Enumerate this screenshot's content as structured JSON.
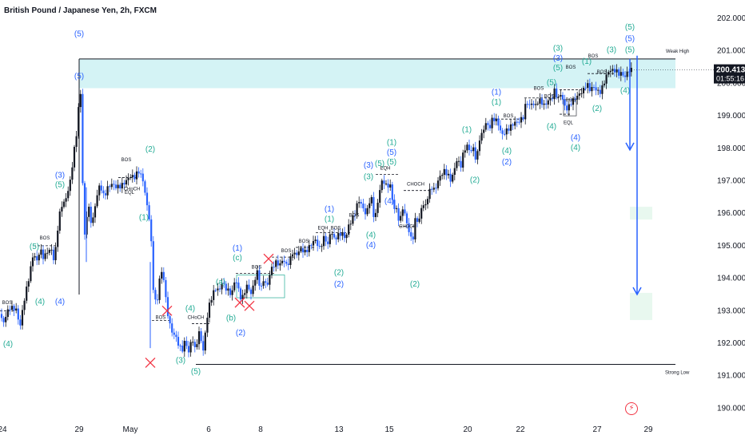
{
  "title": "British Pound / Japanese Yen, 2h, FXCM",
  "colors": {
    "background": "#ffffff",
    "candle_up": "#131722",
    "candle_down": "#2962ff",
    "zone_fill": "#d4f3f5",
    "wave_blue": "#2962ff",
    "wave_teal": "#22ab94",
    "cross": "#f23645",
    "price_tag": "#131722",
    "arrow": "#2962ff"
  },
  "chart_data": {
    "type": "candlestick",
    "symbol": "GBPJPY",
    "timeframe": "2h",
    "ylim": [
      189.7,
      202.5
    ],
    "y_ticks": [
      "202.000",
      "201.000",
      "200.000",
      "199.000",
      "198.000",
      "197.000",
      "196.000",
      "195.000",
      "194.000",
      "193.000",
      "192.000",
      "191.000",
      "190.000"
    ],
    "x_ticks": [
      "24",
      "29",
      "May",
      "6",
      "8",
      "13",
      "15",
      "20",
      "22",
      "27",
      "29"
    ],
    "last_price": "200.413",
    "countdown": "01:55:16",
    "weak_high": {
      "label": "Weak High",
      "value": 200.75
    },
    "strong_low": {
      "label": "Strong Low",
      "value": 191.35
    },
    "supply_zone": [
      199.85,
      200.75
    ],
    "projection": {
      "from": 200.85,
      "to_1": 197.95,
      "to_2": 193.5
    },
    "price_path": [
      [
        0,
        192.9
      ],
      [
        4,
        192.6
      ],
      [
        8,
        192.9
      ],
      [
        12,
        193.1
      ],
      [
        20,
        193.05
      ],
      [
        25,
        192.5
      ],
      [
        30,
        193.3
      ],
      [
        36,
        194.0
      ],
      [
        42,
        194.8
      ],
      [
        46,
        194.5
      ],
      [
        50,
        194.9
      ],
      [
        55,
        194.6
      ],
      [
        58,
        194.8
      ],
      [
        64,
        194.9
      ],
      [
        68,
        194.5
      ],
      [
        72,
        195.5
      ],
      [
        76,
        196.2
      ],
      [
        82,
        196.4
      ],
      [
        88,
        197.0
      ],
      [
        92,
        197.8
      ],
      [
        96,
        198.5
      ],
      [
        99,
        199.5
      ],
      [
        101,
        199.7
      ],
      [
        103,
        197.2
      ],
      [
        106,
        195.3
      ],
      [
        110,
        196.3
      ],
      [
        115,
        195.6
      ],
      [
        120,
        196.4
      ],
      [
        125,
        196.9
      ],
      [
        130,
        196.5
      ],
      [
        135,
        196.8
      ],
      [
        140,
        196.9
      ],
      [
        146,
        196.8
      ],
      [
        152,
        196.85
      ],
      [
        158,
        197.0
      ],
      [
        163,
        197.15
      ],
      [
        168,
        197.1
      ],
      [
        173,
        197.3
      ],
      [
        176,
        197.2
      ],
      [
        180,
        196.9
      ],
      [
        184,
        196.2
      ],
      [
        188,
        195.7
      ],
      [
        192,
        193.6
      ],
      [
        196,
        193.1
      ],
      [
        200,
        194.1
      ],
      [
        204,
        194.2
      ],
      [
        208,
        193.2
      ],
      [
        212,
        192.6
      ],
      [
        216,
        192.3
      ],
      [
        220,
        192.2
      ],
      [
        224,
        191.9
      ],
      [
        228,
        191.8
      ],
      [
        232,
        192.1
      ],
      [
        236,
        191.7
      ],
      [
        240,
        192.2
      ],
      [
        244,
        191.8
      ],
      [
        250,
        192.4
      ],
      [
        254,
        191.7
      ],
      [
        258,
        192.6
      ],
      [
        262,
        193.2
      ],
      [
        266,
        193.5
      ],
      [
        270,
        193.7
      ],
      [
        274,
        193.6
      ],
      [
        278,
        193.9
      ],
      [
        282,
        193.7
      ],
      [
        286,
        193.6
      ],
      [
        290,
        193.5
      ],
      [
        294,
        194.0
      ],
      [
        298,
        193.7
      ],
      [
        302,
        193.3
      ],
      [
        306,
        193.6
      ],
      [
        310,
        193.8
      ],
      [
        314,
        193.5
      ],
      [
        318,
        193.9
      ],
      [
        322,
        194.2
      ],
      [
        326,
        193.6
      ],
      [
        330,
        194.0
      ],
      [
        334,
        193.7
      ],
      [
        338,
        194.2
      ],
      [
        342,
        194.4
      ],
      [
        346,
        194.5
      ],
      [
        350,
        194.4
      ],
      [
        354,
        194.6
      ],
      [
        358,
        194.4
      ],
      [
        362,
        194.5
      ],
      [
        366,
        194.8
      ],
      [
        370,
        194.7
      ],
      [
        376,
        194.9
      ],
      [
        382,
        194.8
      ],
      [
        388,
        195.0
      ],
      [
        394,
        195.2
      ],
      [
        400,
        194.9
      ],
      [
        406,
        195.3
      ],
      [
        410,
        195.0
      ],
      [
        414,
        195.5
      ],
      [
        418,
        195.2
      ],
      [
        422,
        195.3
      ],
      [
        428,
        195.4
      ],
      [
        432,
        195.2
      ],
      [
        436,
        195.6
      ],
      [
        440,
        195.8
      ],
      [
        444,
        196.0
      ],
      [
        448,
        196.4
      ],
      [
        452,
        196.3
      ],
      [
        456,
        196.0
      ],
      [
        460,
        196.1
      ],
      [
        464,
        196.6
      ],
      [
        468,
        195.8
      ],
      [
        472,
        196.2
      ],
      [
        476,
        196.9
      ],
      [
        480,
        197.0
      ],
      [
        484,
        196.8
      ],
      [
        488,
        196.9
      ],
      [
        492,
        196.2
      ],
      [
        496,
        196.1
      ],
      [
        500,
        195.7
      ],
      [
        504,
        196.2
      ],
      [
        508,
        195.8
      ],
      [
        512,
        195.4
      ],
      [
        516,
        195.1
      ],
      [
        520,
        195.9
      ],
      [
        524,
        195.7
      ],
      [
        528,
        196.3
      ],
      [
        532,
        196.2
      ],
      [
        536,
        196.6
      ],
      [
        540,
        196.8
      ],
      [
        544,
        196.7
      ],
      [
        548,
        197.0
      ],
      [
        552,
        197.2
      ],
      [
        556,
        197.3
      ],
      [
        560,
        197.2
      ],
      [
        564,
        197.0
      ],
      [
        568,
        197.3
      ],
      [
        572,
        197.7
      ],
      [
        576,
        197.4
      ],
      [
        580,
        197.9
      ],
      [
        584,
        198.1
      ],
      [
        588,
        197.9
      ],
      [
        592,
        198.0
      ],
      [
        596,
        197.6
      ],
      [
        600,
        198.3
      ],
      [
        604,
        198.5
      ],
      [
        608,
        198.8
      ],
      [
        612,
        198.6
      ],
      [
        616,
        198.9
      ],
      [
        620,
        198.9
      ],
      [
        624,
        198.7
      ],
      [
        628,
        198.4
      ],
      [
        632,
        198.5
      ],
      [
        636,
        198.6
      ],
      [
        640,
        198.7
      ],
      [
        644,
        198.8
      ],
      [
        648,
        198.8
      ],
      [
        652,
        198.9
      ],
      [
        656,
        199.0
      ],
      [
        658,
        199.5
      ],
      [
        662,
        199.3
      ],
      [
        666,
        199.4
      ],
      [
        670,
        199.3
      ],
      [
        674,
        199.5
      ],
      [
        678,
        199.4
      ],
      [
        682,
        199.3
      ],
      [
        686,
        199.5
      ],
      [
        690,
        199.5
      ],
      [
        694,
        199.8
      ],
      [
        698,
        199.5
      ],
      [
        702,
        199.7
      ],
      [
        706,
        199.3
      ],
      [
        710,
        199.2
      ],
      [
        714,
        199.4
      ],
      [
        718,
        199.5
      ],
      [
        722,
        199.6
      ],
      [
        726,
        199.7
      ],
      [
        730,
        199.8
      ],
      [
        734,
        200.0
      ],
      [
        738,
        199.8
      ],
      [
        742,
        199.9
      ],
      [
        746,
        199.8
      ],
      [
        750,
        199.7
      ],
      [
        754,
        199.9
      ],
      [
        758,
        200.2
      ],
      [
        762,
        200.4
      ],
      [
        766,
        200.4
      ],
      [
        770,
        200.4
      ],
      [
        774,
        200.3
      ],
      [
        778,
        200.3
      ],
      [
        782,
        200.2
      ],
      [
        786,
        200.4
      ],
      [
        790,
        200.41
      ]
    ],
    "annotations": {
      "wave_labels": [
        {
          "t": "(5)",
          "x": 99,
          "y": 200.15,
          "c": "blue"
        },
        {
          "t": "(5)",
          "x": 99,
          "y": 201.45,
          "c": "blue"
        },
        {
          "t": "(3)",
          "x": 75,
          "y": 197.1,
          "c": "blue"
        },
        {
          "t": "(5)",
          "x": 75,
          "y": 196.8,
          "c": "teal"
        },
        {
          "t": "(5)",
          "x": 43,
          "y": 194.9,
          "c": "teal"
        },
        {
          "t": "(4)",
          "x": 50,
          "y": 193.2,
          "c": "teal"
        },
        {
          "t": "(4)",
          "x": 75,
          "y": 193.2,
          "c": "blue"
        },
        {
          "t": "(4)",
          "x": 10,
          "y": 191.9,
          "c": "teal"
        },
        {
          "t": "(2)",
          "x": 188,
          "y": 197.9,
          "c": "teal"
        },
        {
          "t": "(1)",
          "x": 180,
          "y": 195.8,
          "c": "teal"
        },
        {
          "t": "(4)",
          "x": 238,
          "y": 193.0,
          "c": "teal"
        },
        {
          "t": "(3)",
          "x": 226,
          "y": 191.4,
          "c": "teal"
        },
        {
          "t": "(5)",
          "x": 245,
          "y": 191.05,
          "c": "teal"
        },
        {
          "t": "(1)",
          "x": 297,
          "y": 194.85,
          "c": "blue"
        },
        {
          "t": "(c)",
          "x": 297,
          "y": 194.55,
          "c": "teal"
        },
        {
          "t": "(a)",
          "x": 276,
          "y": 193.8,
          "c": "teal"
        },
        {
          "t": "(b)",
          "x": 289,
          "y": 192.7,
          "c": "teal"
        },
        {
          "t": "(2)",
          "x": 301,
          "y": 192.25,
          "c": "blue"
        },
        {
          "t": "(1)",
          "x": 412,
          "y": 196.05,
          "c": "blue"
        },
        {
          "t": "(1)",
          "x": 412,
          "y": 195.75,
          "c": "teal"
        },
        {
          "t": "(2)",
          "x": 424,
          "y": 194.1,
          "c": "teal"
        },
        {
          "t": "(2)",
          "x": 424,
          "y": 193.75,
          "c": "blue"
        },
        {
          "t": "(4)",
          "x": 464,
          "y": 195.25,
          "c": "teal"
        },
        {
          "t": "(4)",
          "x": 464,
          "y": 194.95,
          "c": "blue"
        },
        {
          "t": "(3)",
          "x": 461,
          "y": 197.4,
          "c": "blue"
        },
        {
          "t": "(3)",
          "x": 461,
          "y": 197.05,
          "c": "teal"
        },
        {
          "t": "(5)",
          "x": 475,
          "y": 197.45,
          "c": "teal"
        },
        {
          "t": "(1)",
          "x": 490,
          "y": 198.1,
          "c": "teal"
        },
        {
          "t": "(5)",
          "x": 490,
          "y": 197.8,
          "c": "blue"
        },
        {
          "t": "(5)",
          "x": 490,
          "y": 197.5,
          "c": "teal"
        },
        {
          "t": "(4)",
          "x": 487,
          "y": 196.3,
          "c": "blue"
        },
        {
          "t": "(2)",
          "x": 519,
          "y": 193.75,
          "c": "teal"
        },
        {
          "t": "(2)",
          "x": 594,
          "y": 196.95,
          "c": "teal"
        },
        {
          "t": "(1)",
          "x": 584,
          "y": 198.5,
          "c": "teal"
        },
        {
          "t": "(1)",
          "x": 621,
          "y": 199.65,
          "c": "blue"
        },
        {
          "t": "(1)",
          "x": 621,
          "y": 199.35,
          "c": "teal"
        },
        {
          "t": "(4)",
          "x": 634,
          "y": 197.85,
          "c": "teal"
        },
        {
          "t": "(2)",
          "x": 634,
          "y": 197.5,
          "c": "blue"
        },
        {
          "t": "(4)",
          "x": 690,
          "y": 198.6,
          "c": "teal"
        },
        {
          "t": "(5)",
          "x": 690,
          "y": 199.95,
          "c": "teal"
        },
        {
          "t": "(3)",
          "x": 698,
          "y": 201.0,
          "c": "teal"
        },
        {
          "t": "(3)",
          "x": 698,
          "y": 200.7,
          "c": "blue"
        },
        {
          "t": "(5)",
          "x": 698,
          "y": 200.4,
          "c": "teal"
        },
        {
          "t": "(1)",
          "x": 734,
          "y": 200.6,
          "c": "teal"
        },
        {
          "t": "(4)",
          "x": 720,
          "y": 198.25,
          "c": "blue"
        },
        {
          "t": "(4)",
          "x": 720,
          "y": 197.95,
          "c": "teal"
        },
        {
          "t": "(2)",
          "x": 747,
          "y": 199.15,
          "c": "teal"
        },
        {
          "t": "(3)",
          "x": 765,
          "y": 200.95,
          "c": "teal"
        },
        {
          "t": "(5)",
          "x": 788,
          "y": 201.65,
          "c": "teal"
        },
        {
          "t": "(5)",
          "x": 788,
          "y": 201.3,
          "c": "blue"
        },
        {
          "t": "(5)",
          "x": 788,
          "y": 200.95,
          "c": "teal"
        },
        {
          "t": "(4)",
          "x": 782,
          "y": 199.7,
          "c": "teal"
        }
      ],
      "small_labels": [
        {
          "t": "BOS",
          "x": 9,
          "y": 193.2
        },
        {
          "t": "BOS",
          "x": 56,
          "y": 195.2
        },
        {
          "t": "BOS",
          "x": 158,
          "y": 197.6
        },
        {
          "t": "CHoCH",
          "x": 165,
          "y": 196.7
        },
        {
          "t": "EQL",
          "x": 162,
          "y": 196.6
        },
        {
          "t": "BOS",
          "x": 201,
          "y": 192.75
        },
        {
          "t": "CHoCH",
          "x": 245,
          "y": 192.75
        },
        {
          "t": "BOS",
          "x": 321,
          "y": 194.3
        },
        {
          "t": "BOS",
          "x": 358,
          "y": 194.8
        },
        {
          "t": "BOS",
          "x": 380,
          "y": 195.1
        },
        {
          "t": "EQH",
          "x": 404,
          "y": 195.5
        },
        {
          "t": "BOS",
          "x": 420,
          "y": 195.5
        },
        {
          "t": "BOS",
          "x": 443,
          "y": 195.9
        },
        {
          "t": "EQH",
          "x": 482,
          "y": 197.35
        },
        {
          "t": "CHOCH",
          "x": 520,
          "y": 196.85
        },
        {
          "t": "CHOCH",
          "x": 510,
          "y": 195.55
        },
        {
          "t": "BOS",
          "x": 636,
          "y": 198.95
        },
        {
          "t": "BOS",
          "x": 674,
          "y": 199.8
        },
        {
          "t": "BOS",
          "x": 687,
          "y": 199.55
        },
        {
          "t": "BOS",
          "x": 714,
          "y": 199.45
        },
        {
          "t": "EQL",
          "x": 711,
          "y": 198.75
        },
        {
          "t": "BOS",
          "x": 714,
          "y": 200.45
        },
        {
          "t": "BOS",
          "x": 742,
          "y": 200.8
        },
        {
          "t": "BOS",
          "x": 753,
          "y": 200.3
        }
      ],
      "crosses": [
        {
          "x": 188,
          "y": 191.4
        },
        {
          "x": 209,
          "y": 193.0
        },
        {
          "x": 300,
          "y": 193.25
        },
        {
          "x": 312,
          "y": 193.15
        },
        {
          "x": 336,
          "y": 194.6
        }
      ]
    }
  }
}
